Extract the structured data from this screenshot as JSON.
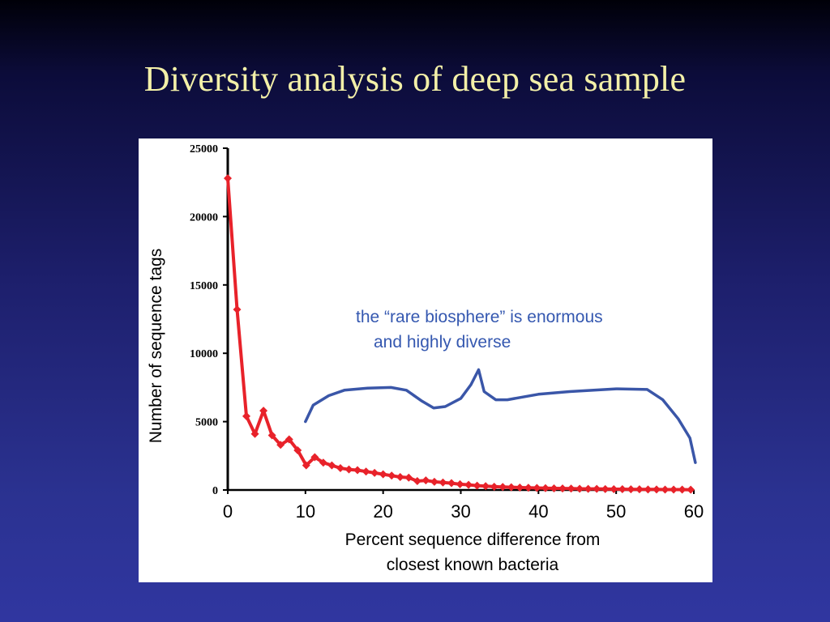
{
  "slide": {
    "title": "Diversity analysis of deep sea sample"
  },
  "colors": {
    "title": "#f3f0a8",
    "red_series": "#e8222a",
    "blue_series": "#3a56a8",
    "annotation": "#3558b0"
  },
  "chart_data": {
    "type": "line",
    "title": "",
    "xlabel_lines": [
      "Percent sequence difference from",
      "closest known bacteria"
    ],
    "ylabel": "Number of sequence tags",
    "xlim": [
      0,
      60
    ],
    "ylim": [
      0,
      25000
    ],
    "x_ticks": [
      "0",
      "10",
      "20",
      "30",
      "40",
      "50",
      "60"
    ],
    "y_ticks": [
      "0",
      "5000",
      "10000",
      "15000",
      "20000",
      "25000"
    ],
    "grid": false,
    "annotation_lines": [
      "the “rare biosphere” is enormous",
      "and highly diverse"
    ],
    "series": [
      {
        "color": "#e8222a",
        "markers": true,
        "points": [
          [
            0,
            22800
          ],
          [
            1.2,
            13200
          ],
          [
            2.4,
            5400
          ],
          [
            3.5,
            4100
          ],
          [
            4.6,
            5800
          ],
          [
            5.7,
            4000
          ],
          [
            6.8,
            3300
          ],
          [
            7.9,
            3700
          ],
          [
            9.0,
            2900
          ],
          [
            10.1,
            1800
          ],
          [
            11.2,
            2400
          ],
          [
            12.3,
            2000
          ],
          [
            13.4,
            1800
          ],
          [
            14.5,
            1600
          ],
          [
            15.6,
            1500
          ],
          [
            16.7,
            1450
          ],
          [
            17.8,
            1350
          ],
          [
            18.9,
            1250
          ],
          [
            20.0,
            1150
          ],
          [
            21.1,
            1050
          ],
          [
            22.2,
            950
          ],
          [
            23.3,
            900
          ],
          [
            24.4,
            650
          ],
          [
            25.5,
            700
          ],
          [
            26.6,
            600
          ],
          [
            27.7,
            550
          ],
          [
            28.8,
            500
          ],
          [
            29.9,
            420
          ],
          [
            31.0,
            380
          ],
          [
            32.1,
            320
          ],
          [
            33.2,
            280
          ],
          [
            34.3,
            240
          ],
          [
            35.4,
            220
          ],
          [
            36.5,
            200
          ],
          [
            37.6,
            180
          ],
          [
            38.7,
            160
          ],
          [
            39.8,
            150
          ],
          [
            40.9,
            130
          ],
          [
            42.0,
            120
          ],
          [
            43.1,
            110
          ],
          [
            44.2,
            100
          ],
          [
            45.3,
            90
          ],
          [
            46.4,
            80
          ],
          [
            47.5,
            80
          ],
          [
            48.6,
            70
          ],
          [
            49.7,
            60
          ],
          [
            50.8,
            60
          ],
          [
            51.9,
            50
          ],
          [
            53.0,
            50
          ],
          [
            54.1,
            40
          ],
          [
            55.2,
            40
          ],
          [
            56.3,
            30
          ],
          [
            57.4,
            30
          ],
          [
            58.5,
            30
          ],
          [
            59.6,
            20
          ]
        ]
      },
      {
        "color": "#3a56a8",
        "markers": false,
        "points": [
          [
            10,
            5000
          ],
          [
            11,
            6200
          ],
          [
            13,
            6900
          ],
          [
            15,
            7300
          ],
          [
            18,
            7450
          ],
          [
            21,
            7500
          ],
          [
            23,
            7300
          ],
          [
            25,
            6500
          ],
          [
            26.5,
            6000
          ],
          [
            28,
            6100
          ],
          [
            30,
            6700
          ],
          [
            31.3,
            7700
          ],
          [
            32.3,
            8800
          ],
          [
            33,
            7200
          ],
          [
            34.5,
            6600
          ],
          [
            36,
            6600
          ],
          [
            38,
            6800
          ],
          [
            40,
            7000
          ],
          [
            44,
            7200
          ],
          [
            50,
            7400
          ],
          [
            54,
            7350
          ],
          [
            56,
            6600
          ],
          [
            58,
            5200
          ],
          [
            59.5,
            3800
          ],
          [
            60.2,
            2000
          ]
        ]
      }
    ]
  }
}
